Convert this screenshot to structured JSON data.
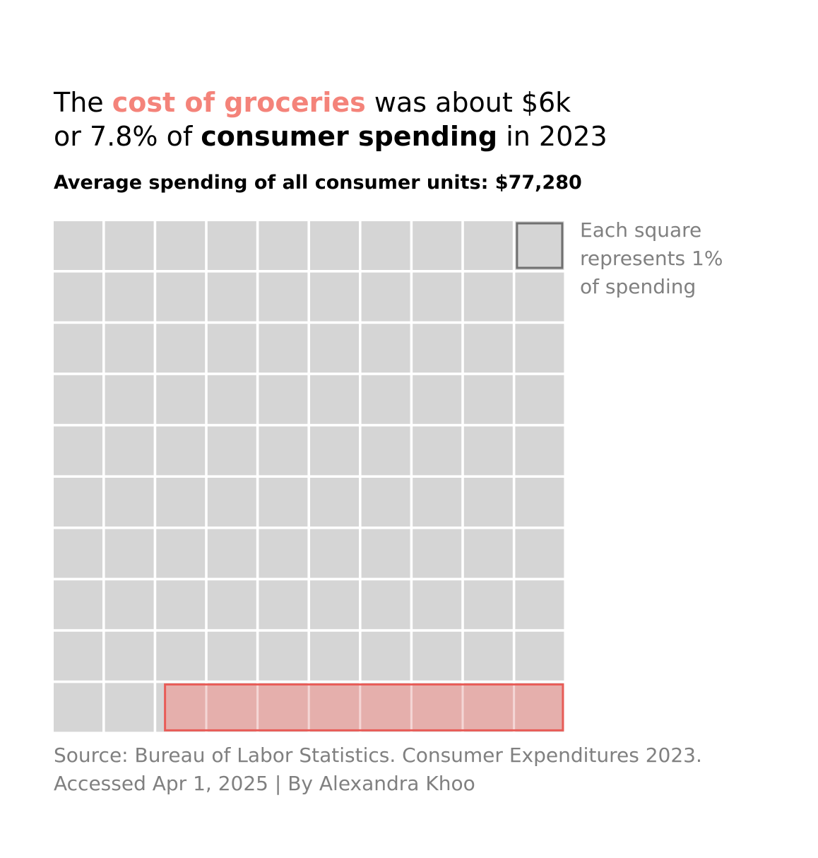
{
  "title": {
    "line1_pre": "The ",
    "line1_highlight": "cost of groceries",
    "line1_post": " was about $6k",
    "line2_pre": "or 7.8% of ",
    "line2_bold": "consumer spending",
    "line2_post": " in 2023"
  },
  "subtitle": "Average spending of all consumer units: $77,280",
  "legend_note": {
    "line1": "Each square",
    "line2": "represents 1%",
    "line3": "of spending"
  },
  "source": {
    "line1": "Source: Bureau of Labor Statistics. Consumer Expenditures 2023.",
    "line2": "Accessed Apr 1, 2025 | By Alexandra Khoo"
  },
  "colors": {
    "accent": "#f4837a",
    "square": "#d5d5d5",
    "highlight_fill": "#e8a8a5",
    "highlight_border": "#e85c57",
    "legend_border": "#707070",
    "muted_text": "#808080"
  },
  "chart_data": {
    "type": "waffle",
    "rows": 10,
    "cols": 10,
    "unit_percent": 1,
    "total_squares": 100,
    "highlighted_percent": 7.8,
    "highlighted_category": "cost of groceries",
    "total_spending_usd": 77280,
    "highlighted_spending_usd_approx": 6000,
    "year": 2023,
    "legend_square": "top-right",
    "highlight_position": "bottom-right"
  }
}
